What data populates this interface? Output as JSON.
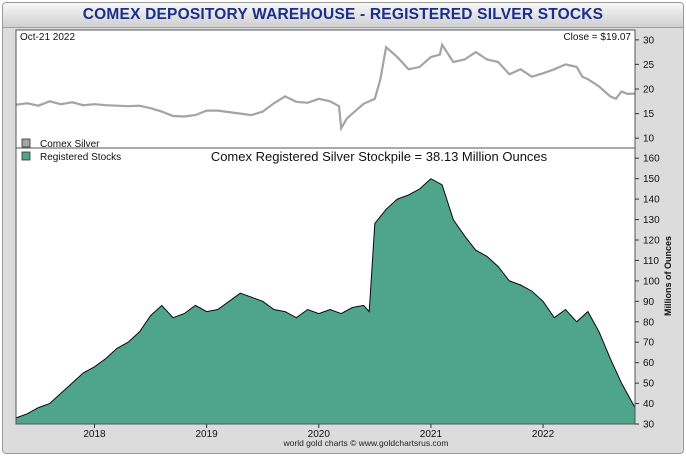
{
  "chart_data": [
    {
      "type": "line",
      "title": "COMEX DEPOSITORY WAREHOUSE - REGISTERED SILVER STOCKS",
      "date_label": "Oct-21  2022",
      "close_label": "Close = $19.07",
      "legend": "Comex Silver",
      "ylim": [
        8,
        32
      ],
      "yticks": [
        10,
        15,
        20,
        25,
        30
      ],
      "xlim": [
        2017.3,
        2022.82
      ],
      "series": [
        {
          "name": "Comex Silver",
          "color": "#a4a4a4",
          "points": [
            [
              2017.3,
              16.8
            ],
            [
              2017.4,
              17.1
            ],
            [
              2017.5,
              16.6
            ],
            [
              2017.6,
              17.5
            ],
            [
              2017.7,
              16.9
            ],
            [
              2017.8,
              17.3
            ],
            [
              2017.9,
              16.7
            ],
            [
              2018.0,
              16.9
            ],
            [
              2018.1,
              16.7
            ],
            [
              2018.2,
              16.6
            ],
            [
              2018.3,
              16.5
            ],
            [
              2018.4,
              16.6
            ],
            [
              2018.5,
              16.1
            ],
            [
              2018.6,
              15.4
            ],
            [
              2018.7,
              14.5
            ],
            [
              2018.8,
              14.4
            ],
            [
              2018.9,
              14.7
            ],
            [
              2019.0,
              15.6
            ],
            [
              2019.1,
              15.6
            ],
            [
              2019.2,
              15.3
            ],
            [
              2019.3,
              15.0
            ],
            [
              2019.4,
              14.7
            ],
            [
              2019.5,
              15.4
            ],
            [
              2019.6,
              17.1
            ],
            [
              2019.7,
              18.5
            ],
            [
              2019.8,
              17.4
            ],
            [
              2019.9,
              17.2
            ],
            [
              2020.0,
              18.0
            ],
            [
              2020.1,
              17.5
            ],
            [
              2020.18,
              16.5
            ],
            [
              2020.2,
              12.0
            ],
            [
              2020.25,
              14.0
            ],
            [
              2020.3,
              15.0
            ],
            [
              2020.4,
              17.0
            ],
            [
              2020.5,
              18.0
            ],
            [
              2020.55,
              22.0
            ],
            [
              2020.6,
              28.5
            ],
            [
              2020.7,
              26.5
            ],
            [
              2020.8,
              24.0
            ],
            [
              2020.9,
              24.5
            ],
            [
              2021.0,
              26.5
            ],
            [
              2021.08,
              27.0
            ],
            [
              2021.1,
              29.0
            ],
            [
              2021.2,
              25.5
            ],
            [
              2021.3,
              26.0
            ],
            [
              2021.4,
              27.5
            ],
            [
              2021.5,
              26.0
            ],
            [
              2021.6,
              25.5
            ],
            [
              2021.7,
              23.0
            ],
            [
              2021.8,
              24.0
            ],
            [
              2021.9,
              22.5
            ],
            [
              2022.0,
              23.2
            ],
            [
              2022.1,
              24.0
            ],
            [
              2022.2,
              25.0
            ],
            [
              2022.3,
              24.5
            ],
            [
              2022.35,
              22.5
            ],
            [
              2022.4,
              22.0
            ],
            [
              2022.5,
              20.5
            ],
            [
              2022.6,
              18.5
            ],
            [
              2022.65,
              18.0
            ],
            [
              2022.7,
              19.5
            ],
            [
              2022.75,
              19.0
            ],
            [
              2022.82,
              19.07
            ]
          ]
        }
      ]
    },
    {
      "type": "area",
      "title": "Comex Registered Silver Stockpile = 38.13 Million Ounces",
      "legend": "Registered Stocks",
      "ylabel": "Millions of Ounces",
      "ylim": [
        30,
        165
      ],
      "yticks": [
        30,
        40,
        50,
        60,
        70,
        80,
        90,
        100,
        110,
        120,
        130,
        140,
        150,
        160
      ],
      "xlim": [
        2017.3,
        2022.82
      ],
      "xticks": [
        2018,
        2019,
        2020,
        2021,
        2022
      ],
      "xtick_labels": [
        "2018",
        "2019",
        "2020",
        "2021",
        "2022"
      ],
      "footer": "world gold charts © www.goldchartsrus.com",
      "series": [
        {
          "name": "Registered Stocks",
          "color": "#4ea58a",
          "points": [
            [
              2017.3,
              33
            ],
            [
              2017.4,
              35
            ],
            [
              2017.5,
              38
            ],
            [
              2017.6,
              40
            ],
            [
              2017.7,
              45
            ],
            [
              2017.8,
              50
            ],
            [
              2017.9,
              55
            ],
            [
              2018.0,
              58
            ],
            [
              2018.1,
              62
            ],
            [
              2018.2,
              67
            ],
            [
              2018.3,
              70
            ],
            [
              2018.4,
              75
            ],
            [
              2018.5,
              83
            ],
            [
              2018.6,
              88
            ],
            [
              2018.7,
              82
            ],
            [
              2018.8,
              84
            ],
            [
              2018.9,
              88
            ],
            [
              2019.0,
              85
            ],
            [
              2019.1,
              86
            ],
            [
              2019.2,
              90
            ],
            [
              2019.3,
              94
            ],
            [
              2019.4,
              92
            ],
            [
              2019.5,
              90
            ],
            [
              2019.6,
              86
            ],
            [
              2019.7,
              85
            ],
            [
              2019.8,
              82
            ],
            [
              2019.9,
              86
            ],
            [
              2020.0,
              84
            ],
            [
              2020.1,
              86
            ],
            [
              2020.2,
              84
            ],
            [
              2020.3,
              87
            ],
            [
              2020.4,
              88
            ],
            [
              2020.45,
              85
            ],
            [
              2020.5,
              128
            ],
            [
              2020.6,
              135
            ],
            [
              2020.7,
              140
            ],
            [
              2020.8,
              142
            ],
            [
              2020.9,
              145
            ],
            [
              2021.0,
              150
            ],
            [
              2021.1,
              147
            ],
            [
              2021.2,
              130
            ],
            [
              2021.3,
              122
            ],
            [
              2021.4,
              115
            ],
            [
              2021.5,
              112
            ],
            [
              2021.6,
              107
            ],
            [
              2021.7,
              100
            ],
            [
              2021.8,
              98
            ],
            [
              2021.9,
              95
            ],
            [
              2022.0,
              90
            ],
            [
              2022.1,
              82
            ],
            [
              2022.2,
              86
            ],
            [
              2022.3,
              80
            ],
            [
              2022.4,
              85
            ],
            [
              2022.5,
              75
            ],
            [
              2022.6,
              62
            ],
            [
              2022.7,
              50
            ],
            [
              2022.8,
              40
            ],
            [
              2022.82,
              38.13
            ]
          ]
        }
      ]
    }
  ]
}
